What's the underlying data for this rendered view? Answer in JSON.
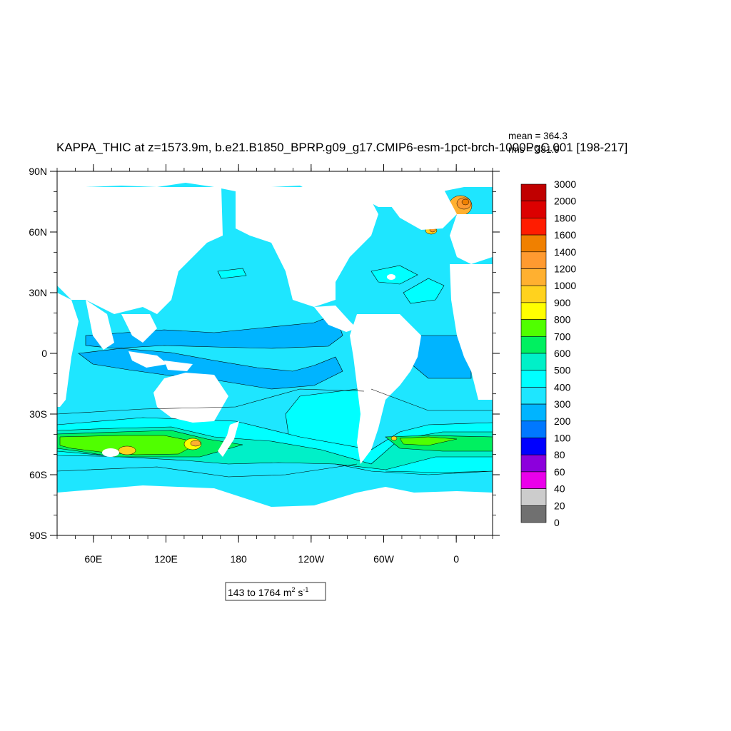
{
  "title": "KAPPA_THIC at z=1573.9m, b.e21.B1850_BPRP.g09_g17.CMIP6-esm-1pct-brch-1000PgC.001 [198-217]",
  "stats": {
    "mean": "mean = 364.3",
    "rms": "rms = 381.9"
  },
  "range_label": {
    "prefix": "143 to 1764 m",
    "exp1": "2",
    "mid": " s",
    "exp2": "-1"
  },
  "axes": {
    "lat_ticks": [
      "90N",
      "60N",
      "30N",
      "0",
      "30S",
      "60S",
      "90S"
    ],
    "lon_ticks": [
      "60E",
      "120E",
      "180",
      "120W",
      "60W",
      "0"
    ]
  },
  "colorbar": {
    "levels": [
      "3000",
      "2000",
      "1800",
      "1600",
      "1400",
      "1200",
      "1000",
      "900",
      "800",
      "700",
      "600",
      "500",
      "400",
      "300",
      "200",
      "100",
      "80",
      "60",
      "40",
      "20",
      "0"
    ],
    "colors": [
      "#c00000",
      "#dc0000",
      "#ff1c00",
      "#f08000",
      "#ff9a30",
      "#ffb030",
      "#ffd21e",
      "#ffff00",
      "#50ff00",
      "#00f060",
      "#00f0c8",
      "#00ffff",
      "#1ee6ff",
      "#00b4ff",
      "#0078ff",
      "#0000ff",
      "#8c00dc",
      "#ea00ea",
      "#cccccc",
      "#707070"
    ]
  },
  "colors": {
    "land": "#ffffff",
    "ocean_base": "#1ee6ff",
    "contour": "#000000"
  }
}
